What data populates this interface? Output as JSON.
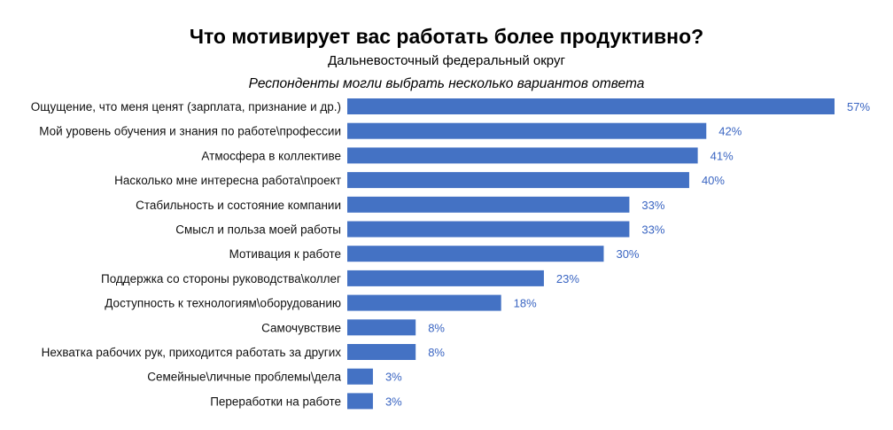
{
  "header": {
    "title": "Что мотивирует вас работать более продуктивно?",
    "subtitle": "Дальневосточный федеральный округ",
    "note": "Респонденты могли выбрать несколько вариантов ответа"
  },
  "chart_data": {
    "type": "bar",
    "orientation": "horizontal",
    "title": "Что мотивирует вас работать более продуктивно?",
    "subtitle": "Дальневосточный федеральный округ",
    "note": "Респонденты могли выбрать несколько вариантов ответа",
    "categories": [
      "Ощущение, что меня ценят (зарплата, признание и др.)",
      "Мой уровень обучения и знания по работе\\профессии",
      "Атмосфера в коллективе",
      "Насколько мне интересна работа\\проект",
      "Стабильность и состояние компании",
      "Смысл и польза моей работы",
      "Мотивация к работе",
      "Поддержка со стороны руководства\\коллег",
      "Доступность к технологиям\\оборудованию",
      "Самочувствие",
      "Нехватка рабочих рук, приходится работать за других",
      "Семейные\\личные проблемы\\дела",
      "Переработки на работе"
    ],
    "values": [
      57,
      42,
      41,
      40,
      33,
      33,
      30,
      23,
      18,
      8,
      8,
      3,
      3
    ],
    "value_labels": [
      "57%",
      "42%",
      "41%",
      "40%",
      "33%",
      "33%",
      "30%",
      "23%",
      "18%",
      "8%",
      "8%",
      "3%",
      "3%"
    ],
    "unit": "%",
    "xlim": [
      0,
      57
    ],
    "grid": false,
    "bar_color": "#4472c4",
    "value_label_color": "#3a65c2"
  }
}
